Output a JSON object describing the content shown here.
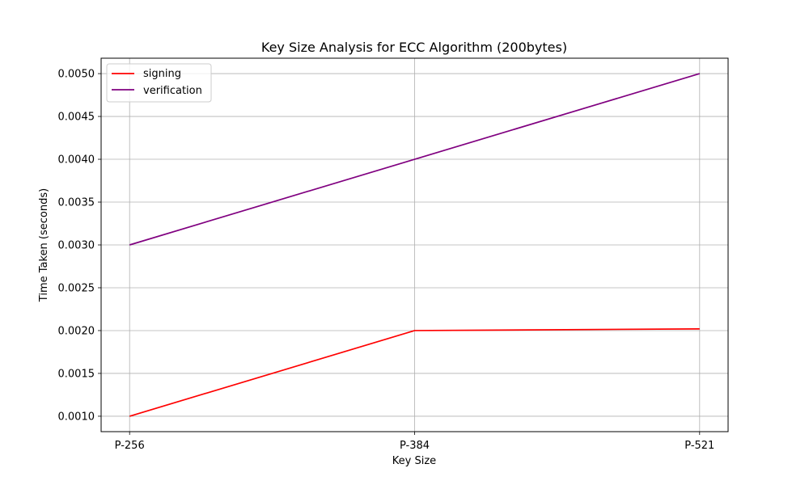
{
  "chart_data": {
    "type": "line",
    "title": "Key Size Analysis for ECC Algorithm (200bytes)",
    "xlabel": "Key Size",
    "ylabel": "Time Taken (seconds)",
    "categories": [
      "P-256",
      "P-384",
      "P-521"
    ],
    "ylim": [
      0.00082,
      0.00518
    ],
    "yticks": [
      0.001,
      0.0015,
      0.002,
      0.0025,
      0.003,
      0.0035,
      0.004,
      0.0045,
      0.005
    ],
    "ytick_labels": [
      "0.0010",
      "0.0015",
      "0.0020",
      "0.0025",
      "0.0030",
      "0.0035",
      "0.0040",
      "0.0045",
      "0.0050"
    ],
    "grid": true,
    "legend_position": "top-left",
    "series": [
      {
        "name": "signing",
        "color": "#ff0000",
        "values": [
          0.001,
          0.002,
          0.00202
        ]
      },
      {
        "name": "verification",
        "color": "#800080",
        "values": [
          0.003,
          0.004,
          0.005
        ]
      }
    ]
  }
}
